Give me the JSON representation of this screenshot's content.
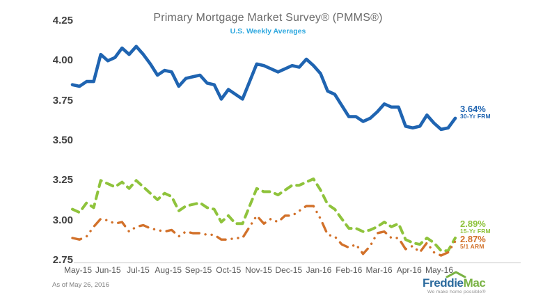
{
  "colors": {
    "title": "#6a6a6a",
    "subtitle": "#2ea8df",
    "y_tick": "#404040",
    "x_tick": "#595959",
    "axis_line": "#d9d9d9",
    "footnote": "#808080",
    "blue_30yr": "#1f64b1",
    "green_15yr": "#8fc33c",
    "orange_arm": "#d2712a"
  },
  "logo": {
    "brand_first": "Freddie",
    "brand_second": "Mac",
    "tagline": "We make home possible®",
    "color_first": "#2b6a9d",
    "color_second": "#79b243",
    "tagline_color": "#909090",
    "roof_color": "#79b243"
  },
  "chart_data": {
    "type": "line",
    "title": "Primary Mortgage Market Survey® (PMMS®)",
    "subtitle": "U.S. Weekly Averages",
    "footnote": "As of May 26, 2016",
    "grid": false,
    "legend_position": "right-end-labels",
    "ylim": [
      2.75,
      4.25
    ],
    "y_tick_labels": [
      "4.25",
      "4.00",
      "3.75",
      "3.50",
      "3.25",
      "3.00",
      "2.75"
    ],
    "x_tick_labels": [
      "May-15",
      "Jun-15",
      "Jul-15",
      "Aug-15",
      "Sep-15",
      "Oct-15",
      "Nov-15",
      "Dec-15",
      "Jan-16",
      "Feb-16",
      "Mar-16",
      "Apr-16",
      "May-16"
    ],
    "x_unit": "weekly",
    "series": [
      {
        "name": "30-Yr FRM",
        "end_label": "3.64%",
        "color": "#1f64b1",
        "style": "solid",
        "values": [
          3.85,
          3.84,
          3.87,
          3.87,
          4.04,
          4.0,
          4.02,
          4.08,
          4.04,
          4.09,
          4.04,
          3.98,
          3.91,
          3.94,
          3.93,
          3.84,
          3.89,
          3.9,
          3.91,
          3.86,
          3.85,
          3.76,
          3.82,
          3.79,
          3.76,
          3.87,
          3.98,
          3.97,
          3.95,
          3.93,
          3.95,
          3.97,
          3.96,
          4.01,
          3.97,
          3.92,
          3.81,
          3.79,
          3.72,
          3.65,
          3.65,
          3.62,
          3.64,
          3.68,
          3.73,
          3.71,
          3.71,
          3.59,
          3.58,
          3.59,
          3.66,
          3.61,
          3.57,
          3.58,
          3.64
        ]
      },
      {
        "name": "15-Yr FRM",
        "end_label": "2.89%",
        "color": "#8fc33c",
        "style": "dashed",
        "values": [
          3.07,
          3.05,
          3.11,
          3.08,
          3.25,
          3.23,
          3.21,
          3.24,
          3.2,
          3.25,
          3.21,
          3.17,
          3.13,
          3.17,
          3.15,
          3.06,
          3.09,
          3.1,
          3.11,
          3.08,
          3.07,
          2.99,
          3.03,
          2.98,
          2.98,
          3.09,
          3.2,
          3.18,
          3.18,
          3.16,
          3.19,
          3.22,
          3.22,
          3.24,
          3.26,
          3.19,
          3.1,
          3.07,
          3.01,
          2.95,
          2.95,
          2.93,
          2.94,
          2.96,
          2.99,
          2.96,
          2.98,
          2.88,
          2.86,
          2.85,
          2.89,
          2.86,
          2.81,
          2.81,
          2.89
        ]
      },
      {
        "name": "5/1 ARM",
        "end_label": "2.87%",
        "color": "#d2712a",
        "style": "dash-dot",
        "values": [
          2.89,
          2.88,
          2.9,
          2.96,
          3.01,
          3.0,
          2.98,
          2.99,
          2.93,
          2.96,
          2.97,
          2.95,
          2.94,
          2.93,
          2.94,
          2.9,
          2.93,
          2.92,
          2.92,
          2.91,
          2.91,
          2.88,
          2.88,
          2.89,
          2.89,
          2.96,
          3.03,
          2.98,
          3.01,
          2.99,
          3.03,
          3.03,
          3.06,
          3.09,
          3.09,
          3.01,
          2.91,
          2.9,
          2.85,
          2.83,
          2.85,
          2.79,
          2.84,
          2.92,
          2.93,
          2.89,
          2.89,
          2.82,
          2.84,
          2.8,
          2.86,
          2.8,
          2.78,
          2.8,
          2.87
        ]
      }
    ]
  }
}
